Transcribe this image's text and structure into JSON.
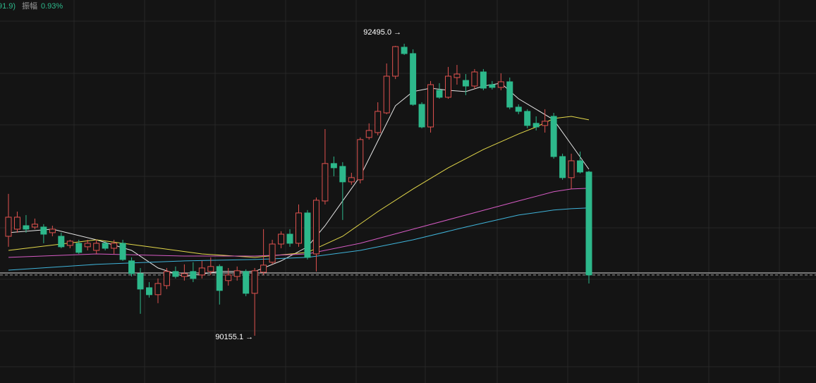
{
  "header": {
    "fragment": "91.9)",
    "amplitude_label": "振幅",
    "amplitude_value": "0.93%"
  },
  "chart_data": {
    "type": "candlestick",
    "up_color": "#e0524f",
    "down_color": "#2db88b",
    "open": [
      90952,
      91009,
      91037,
      91026,
      91026,
      90981,
      90952,
      90879,
      90896,
      90868,
      90839,
      90896,
      90856,
      90896,
      90755,
      90653,
      90540,
      90484,
      90557,
      90670,
      90630,
      90670,
      90642,
      90670,
      90710,
      90597,
      90630,
      90670,
      90495,
      90664,
      90744,
      90890,
      90969,
      90896,
      91139,
      90811,
      91235,
      91535,
      91512,
      91388,
      91405,
      91744,
      91783,
      91941,
      92235,
      92467,
      92416,
      92009,
      91828,
      92122,
      92066,
      92224,
      92201,
      92156,
      92269,
      92167,
      92145,
      92190,
      91987,
      91953,
      91857,
      91840,
      91913,
      91591,
      91422,
      91557,
      91467
    ],
    "high": [
      91292,
      91150,
      91122,
      91094,
      91049,
      91037,
      90981,
      90924,
      90924,
      90924,
      90924,
      90913,
      90924,
      90924,
      90783,
      90698,
      90585,
      90614,
      90698,
      90710,
      90727,
      90744,
      90755,
      90783,
      90727,
      90698,
      90710,
      90687,
      90698,
      91009,
      90924,
      90992,
      91009,
      91207,
      91162,
      91263,
      91811,
      91591,
      91546,
      91461,
      91744,
      91857,
      92026,
      92337,
      92478,
      92495.0,
      92450,
      92026,
      92196,
      92179,
      92309,
      92325,
      92252,
      92292,
      92292,
      92196,
      92258,
      92224,
      92009,
      91970,
      91913,
      91970,
      91941,
      91614,
      91614,
      91631,
      91478
    ],
    "low": [
      90868,
      90981,
      90981,
      91009,
      90896,
      90952,
      90856,
      90856,
      90811,
      90839,
      90811,
      90839,
      90811,
      90755,
      90630,
      90331,
      90461,
      90416,
      90529,
      90614,
      90597,
      90585,
      90614,
      90642,
      90405,
      90557,
      90597,
      90472,
      90155.1,
      90642,
      90727,
      90856,
      90868,
      90868,
      90766,
      90670,
      91207,
      91433,
      91083,
      91365,
      91376,
      91727,
      91761,
      91930,
      92212,
      92405,
      91998,
      91817,
      91783,
      92054,
      92054,
      92167,
      92083,
      92133,
      92122,
      92128,
      92122,
      91970,
      91930,
      91817,
      91800,
      91783,
      91574,
      91405,
      91331,
      91455,
      90574
    ],
    "close": [
      91105,
      91105,
      91009,
      91049,
      90969,
      91009,
      90868,
      90913,
      90823,
      90896,
      90896,
      90856,
      90896,
      90766,
      90653,
      90529,
      90484,
      90574,
      90670,
      90630,
      90653,
      90614,
      90698,
      90710,
      90518,
      90642,
      90676,
      90495,
      90676,
      90721,
      90890,
      90969,
      90896,
      91139,
      90783,
      91241,
      91535,
      91501,
      91388,
      91422,
      91727,
      91800,
      91953,
      92235,
      92472,
      92416,
      92009,
      91828,
      92167,
      92066,
      92235,
      92252,
      92156,
      92269,
      92139,
      92145,
      92190,
      91987,
      91953,
      91840,
      91828,
      91874,
      91591,
      91422,
      91557,
      91467,
      90642
    ],
    "annotations": [
      {
        "text": "92495.0 →"
      },
      {
        "text": "90155.1 →"
      }
    ],
    "lines": [
      {
        "color": "#e6e6e6",
        "x": [
          0,
          5,
          10,
          14,
          17,
          20,
          24,
          28,
          31,
          34,
          36,
          38,
          40,
          42,
          44,
          46,
          48,
          50,
          52,
          54,
          56,
          58,
          60,
          62,
          64,
          66
        ],
        "values": [
          90981,
          91009,
          90924,
          90839,
          90698,
          90630,
          90670,
          90670,
          90755,
          90868,
          91037,
          91235,
          91433,
          91715,
          91998,
          92111,
          92139,
          92122,
          92111,
          92156,
          92179,
          92054,
          91970,
          91885,
          91687,
          91489
        ]
      },
      {
        "color": "#e3d84a",
        "x": [
          0,
          10,
          16,
          22,
          28,
          34,
          38,
          42,
          46,
          50,
          54,
          58,
          60,
          62,
          64,
          66
        ],
        "values": [
          90839,
          90924,
          90868,
          90811,
          90783,
          90823,
          90952,
          91150,
          91331,
          91501,
          91648,
          91772,
          91828,
          91896,
          91913,
          91885
        ]
      },
      {
        "color": "#d65bc4",
        "x": [
          0,
          10,
          20,
          28,
          34,
          40,
          46,
          52,
          58,
          62,
          64,
          66
        ],
        "values": [
          90783,
          90811,
          90794,
          90794,
          90811,
          90896,
          91009,
          91122,
          91235,
          91309,
          91331,
          91337
        ]
      },
      {
        "color": "#3fb3d9",
        "x": [
          0,
          10,
          20,
          28,
          34,
          40,
          46,
          52,
          58,
          62,
          64,
          66
        ],
        "values": [
          90681,
          90727,
          90755,
          90766,
          90783,
          90839,
          90924,
          91026,
          91122,
          91162,
          91173,
          91179
        ]
      }
    ]
  }
}
